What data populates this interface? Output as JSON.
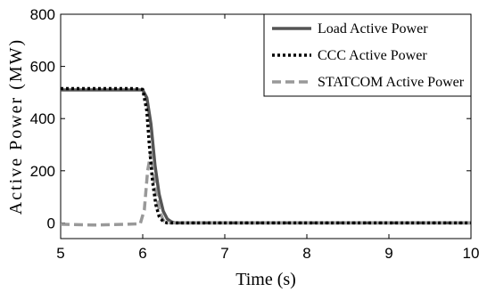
{
  "chart_data": {
    "type": "line",
    "title": "",
    "xlabel": "Time (s)",
    "ylabel": "Active Power (MW)",
    "xlim": [
      5,
      10
    ],
    "ylim": [
      -60,
      800
    ],
    "x_ticks": [
      "5",
      "6",
      "7",
      "8",
      "9",
      "10"
    ],
    "y_ticks": [
      "0",
      "200",
      "400",
      "600",
      "800"
    ],
    "grid": false,
    "legend_position": "top-right",
    "series": [
      {
        "name": "Load Active Power",
        "color": "#555555",
        "style": "solid",
        "points": [
          [
            5.0,
            510
          ],
          [
            5.9,
            510
          ],
          [
            6.0,
            510
          ],
          [
            6.05,
            480
          ],
          [
            6.1,
            380
          ],
          [
            6.15,
            220
          ],
          [
            6.2,
            110
          ],
          [
            6.25,
            45
          ],
          [
            6.3,
            15
          ],
          [
            6.35,
            4
          ],
          [
            6.4,
            0
          ],
          [
            10.0,
            0
          ]
        ]
      },
      {
        "name": "CCC Active Power",
        "color": "#000000",
        "style": "dotted",
        "points": [
          [
            5.0,
            515
          ],
          [
            5.9,
            515
          ],
          [
            6.0,
            512
          ],
          [
            6.05,
            430
          ],
          [
            6.08,
            300
          ],
          [
            6.12,
            160
          ],
          [
            6.16,
            70
          ],
          [
            6.2,
            25
          ],
          [
            6.25,
            5
          ],
          [
            6.3,
            0
          ],
          [
            10.0,
            0
          ]
        ]
      },
      {
        "name": "STATCOM Active Power",
        "color": "#999999",
        "style": "dashed",
        "points": [
          [
            5.0,
            -5
          ],
          [
            5.4,
            -8
          ],
          [
            5.8,
            -5
          ],
          [
            5.97,
            -3
          ],
          [
            6.02,
            50
          ],
          [
            6.06,
            200
          ],
          [
            6.1,
            270
          ],
          [
            6.14,
            160
          ],
          [
            6.2,
            50
          ],
          [
            6.25,
            10
          ],
          [
            6.3,
            0
          ],
          [
            10.0,
            0
          ]
        ]
      }
    ]
  }
}
